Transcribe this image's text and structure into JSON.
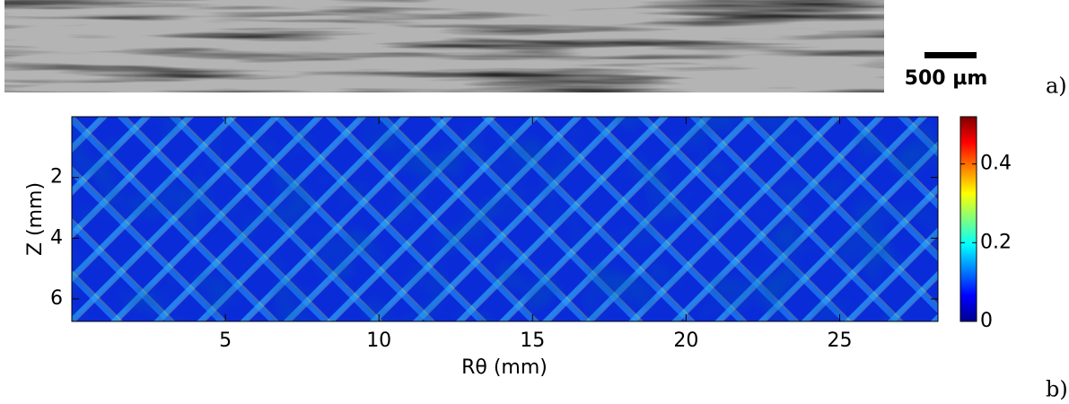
{
  "micrograph": {
    "scale_bar_label": "500 µm",
    "panel_label": "a)"
  },
  "chart_data": {
    "type": "heatmap",
    "panel_label": "b)",
    "x_label": "Rθ (mm)",
    "y_label": "Z (mm)",
    "xlim": [
      0,
      28.2
    ],
    "xticks": [
      5,
      10,
      15,
      20,
      25
    ],
    "ylim": [
      0,
      6.74
    ],
    "yticks": [
      2,
      4,
      6
    ],
    "y_reversed": true,
    "colorbar": {
      "lim": [
        0,
        0.52
      ],
      "ticks": [
        0,
        0.2,
        0.4
      ],
      "colormap": "jet"
    }
  }
}
